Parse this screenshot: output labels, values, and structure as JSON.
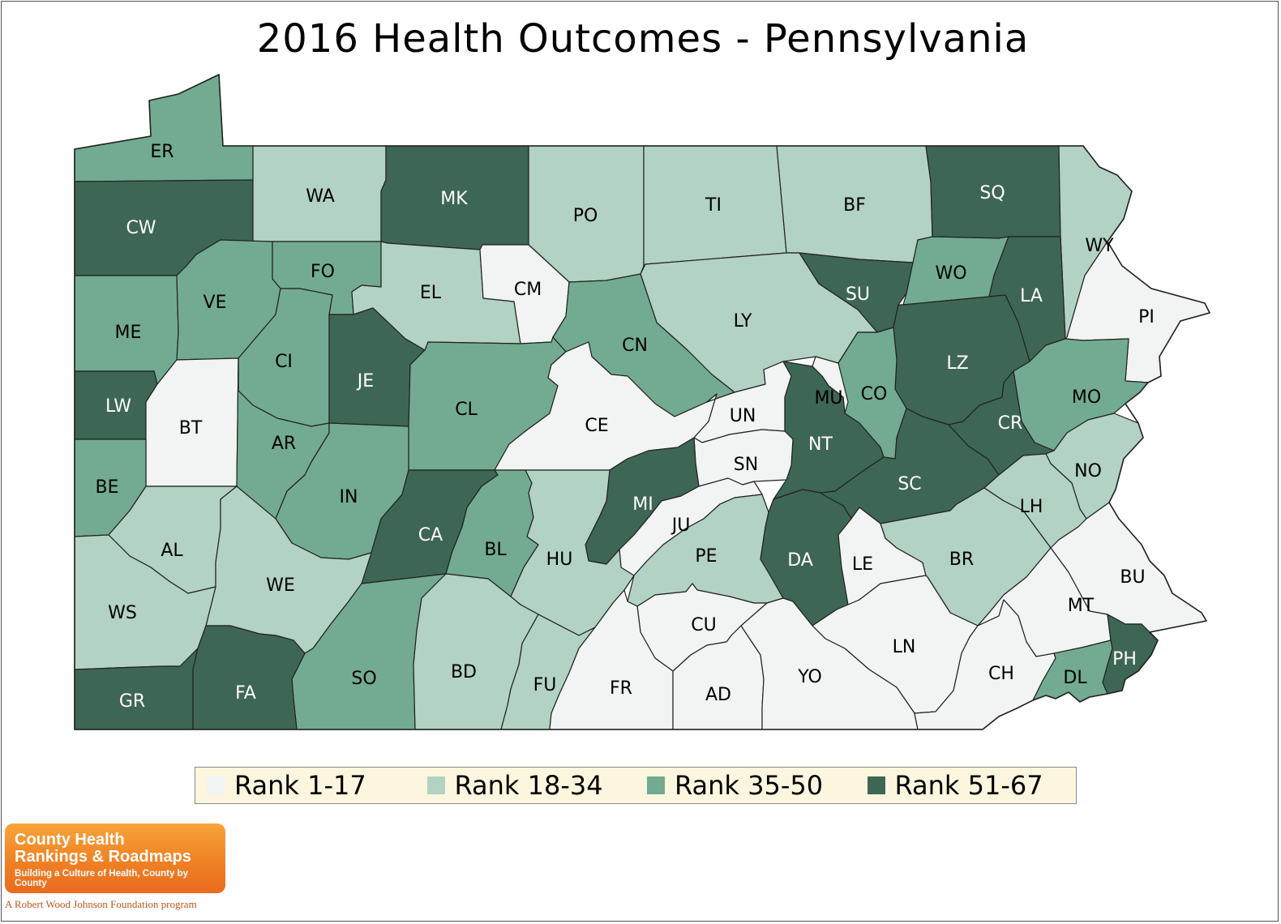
{
  "title": "2016 Health Outcomes - Pennsylvania",
  "colors": {
    "rank_1_17": "#f1f4f2",
    "rank_18_34": "#b2d2c3",
    "rank_35_50": "#72ab91",
    "rank_51_67": "#3e6654",
    "border": "#222222",
    "label_dark": "#000000",
    "label_light": "#ffffff"
  },
  "legend": [
    {
      "label": "Rank 1-17",
      "tier": "rank_1_17"
    },
    {
      "label": "Rank 18-34",
      "tier": "rank_18_34"
    },
    {
      "label": "Rank 35-50",
      "tier": "rank_35_50"
    },
    {
      "label": "Rank 51-67",
      "tier": "rank_51_67"
    }
  ],
  "counties": [
    {
      "abbr": "ER",
      "tier": "rank_35_50"
    },
    {
      "abbr": "CW",
      "tier": "rank_51_67"
    },
    {
      "abbr": "WA",
      "tier": "rank_18_34"
    },
    {
      "abbr": "MK",
      "tier": "rank_51_67"
    },
    {
      "abbr": "PO",
      "tier": "rank_18_34"
    },
    {
      "abbr": "TI",
      "tier": "rank_18_34"
    },
    {
      "abbr": "BF",
      "tier": "rank_18_34"
    },
    {
      "abbr": "SQ",
      "tier": "rank_51_67"
    },
    {
      "abbr": "WY",
      "tier": "rank_18_34"
    },
    {
      "abbr": "ME",
      "tier": "rank_35_50"
    },
    {
      "abbr": "VE",
      "tier": "rank_35_50"
    },
    {
      "abbr": "FO",
      "tier": "rank_35_50"
    },
    {
      "abbr": "EL",
      "tier": "rank_18_34"
    },
    {
      "abbr": "CM",
      "tier": "rank_1_17"
    },
    {
      "abbr": "LY",
      "tier": "rank_18_34"
    },
    {
      "abbr": "SU",
      "tier": "rank_51_67"
    },
    {
      "abbr": "WO",
      "tier": "rank_35_50"
    },
    {
      "abbr": "LA",
      "tier": "rank_51_67"
    },
    {
      "abbr": "PI",
      "tier": "rank_1_17"
    },
    {
      "abbr": "LW",
      "tier": "rank_51_67"
    },
    {
      "abbr": "CI",
      "tier": "rank_35_50"
    },
    {
      "abbr": "JE",
      "tier": "rank_51_67"
    },
    {
      "abbr": "CN",
      "tier": "rank_35_50"
    },
    {
      "abbr": "LZ",
      "tier": "rank_51_67"
    },
    {
      "abbr": "BT",
      "tier": "rank_1_17"
    },
    {
      "abbr": "CL",
      "tier": "rank_35_50"
    },
    {
      "abbr": "CE",
      "tier": "rank_1_17"
    },
    {
      "abbr": "UN",
      "tier": "rank_1_17"
    },
    {
      "abbr": "MU",
      "tier": "rank_1_17"
    },
    {
      "abbr": "CO",
      "tier": "rank_35_50"
    },
    {
      "abbr": "MO",
      "tier": "rank_35_50"
    },
    {
      "abbr": "AR",
      "tier": "rank_35_50"
    },
    {
      "abbr": "CR",
      "tier": "rank_51_67"
    },
    {
      "abbr": "NT",
      "tier": "rank_51_67"
    },
    {
      "abbr": "SN",
      "tier": "rank_1_17"
    },
    {
      "abbr": "BE",
      "tier": "rank_35_50"
    },
    {
      "abbr": "IN",
      "tier": "rank_35_50"
    },
    {
      "abbr": "SC",
      "tier": "rank_51_67"
    },
    {
      "abbr": "NO",
      "tier": "rank_18_34"
    },
    {
      "abbr": "MI",
      "tier": "rank_51_67"
    },
    {
      "abbr": "LH",
      "tier": "rank_18_34"
    },
    {
      "abbr": "AL",
      "tier": "rank_18_34"
    },
    {
      "abbr": "CA",
      "tier": "rank_51_67"
    },
    {
      "abbr": "JU",
      "tier": "rank_1_17"
    },
    {
      "abbr": "BL",
      "tier": "rank_35_50"
    },
    {
      "abbr": "HU",
      "tier": "rank_18_34"
    },
    {
      "abbr": "PE",
      "tier": "rank_18_34"
    },
    {
      "abbr": "DA",
      "tier": "rank_51_67"
    },
    {
      "abbr": "LE",
      "tier": "rank_1_17"
    },
    {
      "abbr": "BR",
      "tier": "rank_18_34"
    },
    {
      "abbr": "BU",
      "tier": "rank_1_17"
    },
    {
      "abbr": "WE",
      "tier": "rank_18_34"
    },
    {
      "abbr": "WS",
      "tier": "rank_18_34"
    },
    {
      "abbr": "MT",
      "tier": "rank_1_17"
    },
    {
      "abbr": "CU",
      "tier": "rank_1_17"
    },
    {
      "abbr": "LN",
      "tier": "rank_1_17"
    },
    {
      "abbr": "SO",
      "tier": "rank_35_50"
    },
    {
      "abbr": "BD",
      "tier": "rank_18_34"
    },
    {
      "abbr": "FU",
      "tier": "rank_18_34"
    },
    {
      "abbr": "FR",
      "tier": "rank_1_17"
    },
    {
      "abbr": "AD",
      "tier": "rank_1_17"
    },
    {
      "abbr": "YO",
      "tier": "rank_1_17"
    },
    {
      "abbr": "CH",
      "tier": "rank_1_17"
    },
    {
      "abbr": "PH",
      "tier": "rank_51_67"
    },
    {
      "abbr": "DL",
      "tier": "rank_35_50"
    },
    {
      "abbr": "GR",
      "tier": "rank_51_67"
    },
    {
      "abbr": "FA",
      "tier": "rank_51_67"
    }
  ],
  "branding": {
    "name_line1": "County Health",
    "name_line2": "Rankings & Roadmaps",
    "tagline": "Building a Culture of Health, County by County",
    "program": "A Robert Wood Johnson Foundation program"
  }
}
